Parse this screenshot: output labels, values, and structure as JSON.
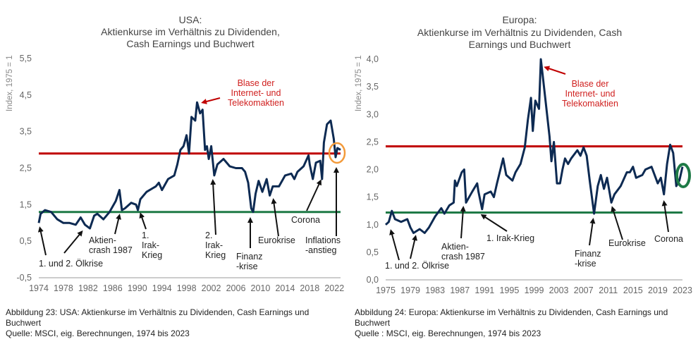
{
  "chart_data": [
    {
      "type": "line",
      "title": [
        "USA:",
        "Aktienkurse im Verhältnis zu Dividenden,",
        "Cash Earnings und Buchwert"
      ],
      "ylabel": "Index, 1975 = 1",
      "xlabel": "",
      "xlim": [
        1974,
        2023
      ],
      "ylim": [
        -0.5,
        5.5
      ],
      "x_ticks": [
        "1974",
        "1978",
        "1982",
        "1986",
        "1990",
        "1994",
        "1998",
        "2002",
        "2006",
        "2010",
        "2014",
        "2018",
        "2022"
      ],
      "y_ticks": [
        "-0,5",
        "0,5",
        "1,5",
        "2,5",
        "3,5",
        "4,5",
        "5,5"
      ],
      "grid": false,
      "reference_lines": [
        {
          "name": "upper",
          "value": 2.9,
          "color": "#c00000"
        },
        {
          "name": "lower",
          "value": 1.3,
          "color": "#1e7a46"
        }
      ],
      "series": [
        {
          "name": "USA",
          "color": "#0d2a52",
          "x": [
            1974,
            1974.3,
            1975,
            1976,
            1977,
            1978,
            1979,
            1980,
            1980.8,
            1981.5,
            1982.3,
            1983,
            1983.5,
            1984.5,
            1985.5,
            1986,
            1986.5,
            1987.1,
            1987.5,
            1988,
            1989,
            1989.8,
            1990.1,
            1990.5,
            1991.5,
            1992.5,
            1993,
            1993.5,
            1994,
            1995,
            1996,
            1996.5,
            1997,
            1997.5,
            1998,
            1998.4,
            1998.8,
            1999.4,
            1999.7,
            2000.2,
            2000.6,
            2001,
            2001.3,
            2001.6,
            2002,
            2002.5,
            2003,
            2004,
            2005,
            2006,
            2007,
            2007.5,
            2008,
            2008.5,
            2008.8,
            2009.2,
            2009.7,
            2010.3,
            2011,
            2011.5,
            2012,
            2013,
            2014,
            2015,
            2015.5,
            2016,
            2017,
            2017.8,
            2018,
            2018.5,
            2019,
            2019.7,
            2020,
            2020.3,
            2020.8,
            2021.4,
            2021.9,
            2022.2,
            2022.5,
            2023
          ],
          "y": [
            1.0,
            1.25,
            1.35,
            1.3,
            1.1,
            1.0,
            1.0,
            0.95,
            1.15,
            0.95,
            0.85,
            1.2,
            1.25,
            1.1,
            1.3,
            1.45,
            1.6,
            1.9,
            1.35,
            1.4,
            1.55,
            1.5,
            1.35,
            1.65,
            1.85,
            1.95,
            2.0,
            2.1,
            1.9,
            2.2,
            2.3,
            2.6,
            3.0,
            3.1,
            3.4,
            2.9,
            3.9,
            3.8,
            4.3,
            4.0,
            4.1,
            3.0,
            3.1,
            2.75,
            3.1,
            2.3,
            2.6,
            2.75,
            2.55,
            2.5,
            2.5,
            2.4,
            2.1,
            1.4,
            1.3,
            1.8,
            2.15,
            1.85,
            2.2,
            1.75,
            2.0,
            2.0,
            2.3,
            2.35,
            2.2,
            2.4,
            2.55,
            2.85,
            2.6,
            2.2,
            2.65,
            2.7,
            2.2,
            3.2,
            3.7,
            3.8,
            3.3,
            2.8,
            3.05,
            3.0
          ]
        }
      ],
      "annotations": {
        "bubble": [
          "Blase der",
          "Internet- und",
          "Telekomaktien"
        ],
        "oil": "1. und 2. Ölkrise",
        "crash": [
          "Aktien-",
          "crash 1987"
        ],
        "iraq1": [
          "1.",
          "Irak-",
          "Krieg"
        ],
        "iraq2": [
          "2.",
          "Irak-",
          "Krieg"
        ],
        "finance": [
          "Finanz",
          "-krise"
        ],
        "euro": "Eurokrise",
        "corona": "Corona",
        "inflation": [
          "Inflations",
          "-anstieg"
        ]
      },
      "caption": [
        "Abbildung 23: USA: Aktienkurse im Verhältnis zu Dividenden, Cash Earnings und",
        "Buchwert",
        "Quelle: MSCI, eig. Berechnungen, 1974 bis 2023"
      ]
    },
    {
      "type": "line",
      "title": [
        "Europa:",
        "Aktienkurse im Verhältnis zu Dividenden, Cash",
        "Earnings und Buchwert"
      ],
      "ylabel": "Index, 1975 = 1",
      "xlabel": "",
      "xlim": [
        1975,
        2023
      ],
      "ylim": [
        0,
        4
      ],
      "x_ticks": [
        "1975",
        "1979",
        "1983",
        "1987",
        "1991",
        "1995",
        "1999",
        "2003",
        "2007",
        "2011",
        "2015",
        "2019",
        "2023"
      ],
      "y_ticks": [
        "0,0",
        "0,5",
        "1,0",
        "1,5",
        "2,0",
        "2,5",
        "3,0",
        "3,5",
        "4,0"
      ],
      "grid": false,
      "reference_lines": [
        {
          "name": "upper",
          "value": 2.42,
          "color": "#c00000"
        },
        {
          "name": "lower",
          "value": 1.22,
          "color": "#1e7a46"
        }
      ],
      "series": [
        {
          "name": "Europa",
          "color": "#0d2a52",
          "x": [
            1975,
            1975.5,
            1976,
            1976.5,
            1977.5,
            1978.5,
            1979,
            1979.5,
            1980.5,
            1981.3,
            1982,
            1983,
            1984,
            1984.5,
            1985.3,
            1986,
            1986.2,
            1986.5,
            1987.3,
            1987.7,
            1988,
            1989,
            1989.8,
            1990,
            1990.6,
            1991,
            1992,
            1992.5,
            1993,
            1994,
            1994.5,
            1995,
            1995.5,
            1996,
            1996.8,
            1997.5,
            1998,
            1998.5,
            1998.8,
            1999.2,
            1999.8,
            2000.1,
            2000.4,
            2000.8,
            2001.5,
            2001.8,
            2002.2,
            2002.7,
            2003.2,
            2003.6,
            2004,
            2004.5,
            2005,
            2006,
            2006.5,
            2007,
            2007.5,
            2008,
            2008.7,
            2009.3,
            2009.8,
            2010.3,
            2010.8,
            2011.5,
            2012,
            2013,
            2014,
            2014.5,
            2015,
            2015.5,
            2016.5,
            2017,
            2018,
            2018.5,
            2019,
            2019.5,
            2020,
            2020.5,
            2021,
            2021.5,
            2022,
            2022.5,
            2023
          ],
          "y": [
            1.0,
            1.05,
            1.25,
            1.1,
            1.05,
            1.1,
            0.95,
            0.85,
            0.92,
            0.85,
            0.95,
            1.15,
            1.3,
            1.2,
            1.35,
            1.4,
            1.8,
            1.7,
            1.95,
            2.0,
            1.4,
            1.6,
            1.75,
            1.6,
            1.28,
            1.55,
            1.6,
            1.5,
            1.75,
            2.2,
            1.9,
            1.85,
            1.8,
            1.95,
            2.1,
            2.4,
            2.9,
            3.3,
            2.7,
            3.25,
            3.1,
            4.0,
            3.7,
            3.3,
            2.6,
            2.15,
            2.5,
            1.75,
            1.75,
            2.0,
            2.2,
            2.1,
            2.2,
            2.35,
            2.25,
            2.4,
            2.25,
            1.8,
            1.2,
            1.7,
            1.9,
            1.65,
            1.85,
            1.4,
            1.55,
            1.7,
            1.95,
            1.95,
            2.05,
            1.85,
            1.9,
            2.0,
            2.05,
            1.9,
            1.75,
            1.85,
            1.55,
            2.1,
            2.45,
            2.3,
            1.7,
            1.8,
            2.05
          ]
        }
      ],
      "annotations": {
        "bubble": [
          "Blase der",
          "Internet- und",
          "Telekomaktien"
        ],
        "oil": "1. und 2. Ölkrise",
        "crash": [
          "Aktien-",
          "crash 1987"
        ],
        "iraq1": "1. Irak-Krieg",
        "finance": [
          "Finanz",
          "-krise"
        ],
        "euro": "Eurokrise",
        "corona": "Corona"
      },
      "caption": [
        "Abbildung 24: Europa: Aktienkurse im Verhältnis zu Dividenden, Cash Earnings und",
        "Buchwert",
        "Quelle : MSCI, eig. Berechnungen, 1974 bis 2023"
      ]
    }
  ]
}
